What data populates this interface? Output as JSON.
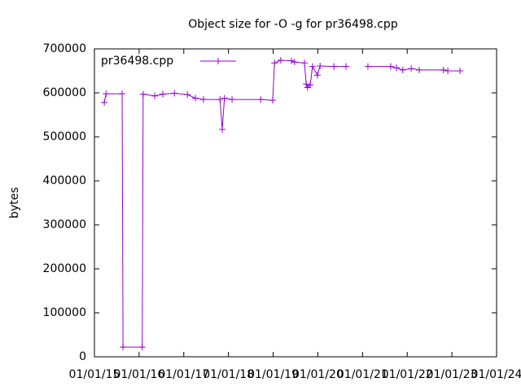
{
  "chart_data": {
    "type": "line",
    "title": "Object size for -O -g for pr36498.cpp",
    "y_label": "bytes",
    "x": [
      2015.22,
      2015.26,
      2015.62,
      2015.64,
      2016.07,
      2016.09,
      2016.35,
      2016.53,
      2016.79,
      2017.08,
      2017.26,
      2017.44,
      2017.81,
      2017.86,
      2017.91,
      2018.08,
      2018.72,
      2018.99,
      2019.03,
      2019.17,
      2019.41,
      2019.48,
      2019.7,
      2019.74,
      2019.77,
      2019.83,
      2019.88,
      2019.99,
      2020.05,
      2020.36,
      2020.63,
      2020.9,
      2021.12,
      2021.63,
      2021.76,
      2021.9,
      2022.09,
      2022.27,
      2022.81,
      2022.91,
      2023.18
    ],
    "series": [
      {
        "name": "pr36498.cpp",
        "color": "#9400d3",
        "values": [
          578000,
          598000,
          598000,
          22000,
          22000,
          597000,
          593000,
          597000,
          599000,
          596000,
          588000,
          585000,
          585000,
          517000,
          588000,
          585000,
          585000,
          583000,
          668000,
          674000,
          673000,
          670000,
          668000,
          620000,
          612000,
          618000,
          660000,
          640000,
          661000,
          660000,
          660000,
          null,
          660000,
          660000,
          657000,
          652000,
          655000,
          652000,
          652000,
          650000,
          650000
        ]
      }
    ],
    "xlim": [
      2015,
      2024
    ],
    "xticks": [
      {
        "value": 2015,
        "label": "01/01/15"
      },
      {
        "value": 2016,
        "label": "01/01/16"
      },
      {
        "value": 2017,
        "label": "01/01/17"
      },
      {
        "value": 2018,
        "label": "01/01/18"
      },
      {
        "value": 2019,
        "label": "01/01/19"
      },
      {
        "value": 2020,
        "label": "01/01/20"
      },
      {
        "value": 2021,
        "label": "01/01/21"
      },
      {
        "value": 2022,
        "label": "01/01/22"
      },
      {
        "value": 2023,
        "label": "01/01/23"
      },
      {
        "value": 2024,
        "label": "01/01/24"
      }
    ],
    "ylim": [
      0,
      700000
    ],
    "yticks": [
      0,
      100000,
      200000,
      300000,
      400000,
      500000,
      600000,
      700000
    ],
    "legend": "top-left"
  }
}
